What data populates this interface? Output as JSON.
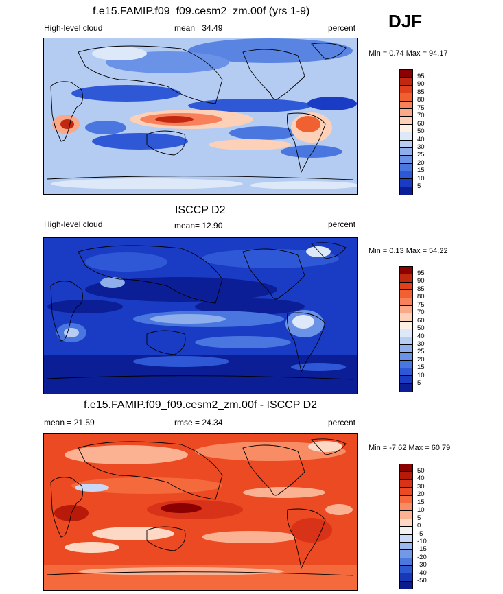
{
  "season": "DJF",
  "panels": [
    {
      "title": "f.e15.FAMIP.f09_f09.cesm2_zm.00f (yrs 1-9)",
      "left_label": "High-level cloud",
      "center_label": "mean=  34.49",
      "right_label": "percent",
      "minmax": "Min =   0.74 Max =   94.17",
      "tick_labels": [
        "95",
        "90",
        "85",
        "80",
        "75",
        "70",
        "60",
        "50",
        "40",
        "30",
        "25",
        "20",
        "15",
        "10",
        "5"
      ],
      "colors": [
        "#8b0000",
        "#c02810",
        "#e0401c",
        "#f06030",
        "#f8805a",
        "#fba888",
        "#fdd0b8",
        "#fff0e4",
        "#dde8f8",
        "#b8cdf2",
        "#8eafec",
        "#6a92e6",
        "#4a76e0",
        "#2e58d6",
        "#1a3cc4",
        "#0c1e96"
      ]
    },
    {
      "title": "ISCCP D2",
      "left_label": "High-level cloud",
      "center_label": "mean=  12.90",
      "right_label": "percent",
      "minmax": "Min =   0.13 Max =   54.22",
      "tick_labels": [
        "95",
        "90",
        "85",
        "80",
        "75",
        "70",
        "60",
        "50",
        "40",
        "30",
        "25",
        "20",
        "15",
        "10",
        "5"
      ],
      "colors": [
        "#8b0000",
        "#c02810",
        "#e0401c",
        "#f06030",
        "#f8805a",
        "#fba888",
        "#fdd0b8",
        "#fff0e4",
        "#dde8f8",
        "#b8cdf2",
        "#8eafec",
        "#6a92e6",
        "#4a76e0",
        "#2e58d6",
        "#1a3cc4",
        "#0c1e96"
      ]
    },
    {
      "title": "f.e15.FAMIP.f09_f09.cesm2_zm.00f - ISCCP D2",
      "left_label": "mean =  21.59",
      "center_label": "rmse =  24.34",
      "right_label": "percent",
      "minmax": "Min =  -7.62 Max =   60.79",
      "tick_labels": [
        "50",
        "40",
        "30",
        "20",
        "15",
        "10",
        "5",
        "0",
        "-5",
        "-10",
        "-15",
        "-20",
        "-30",
        "-40",
        "-50"
      ],
      "colors": [
        "#8b0000",
        "#b81a0a",
        "#d83218",
        "#ec4a22",
        "#f46a3c",
        "#f88c64",
        "#fbb292",
        "#fdd8c4",
        "#f2f2f2",
        "#c8d8f6",
        "#9cb8ee",
        "#7298e6",
        "#4c78de",
        "#2c58d2",
        "#1838b8",
        "#0a1c8c"
      ]
    }
  ]
}
